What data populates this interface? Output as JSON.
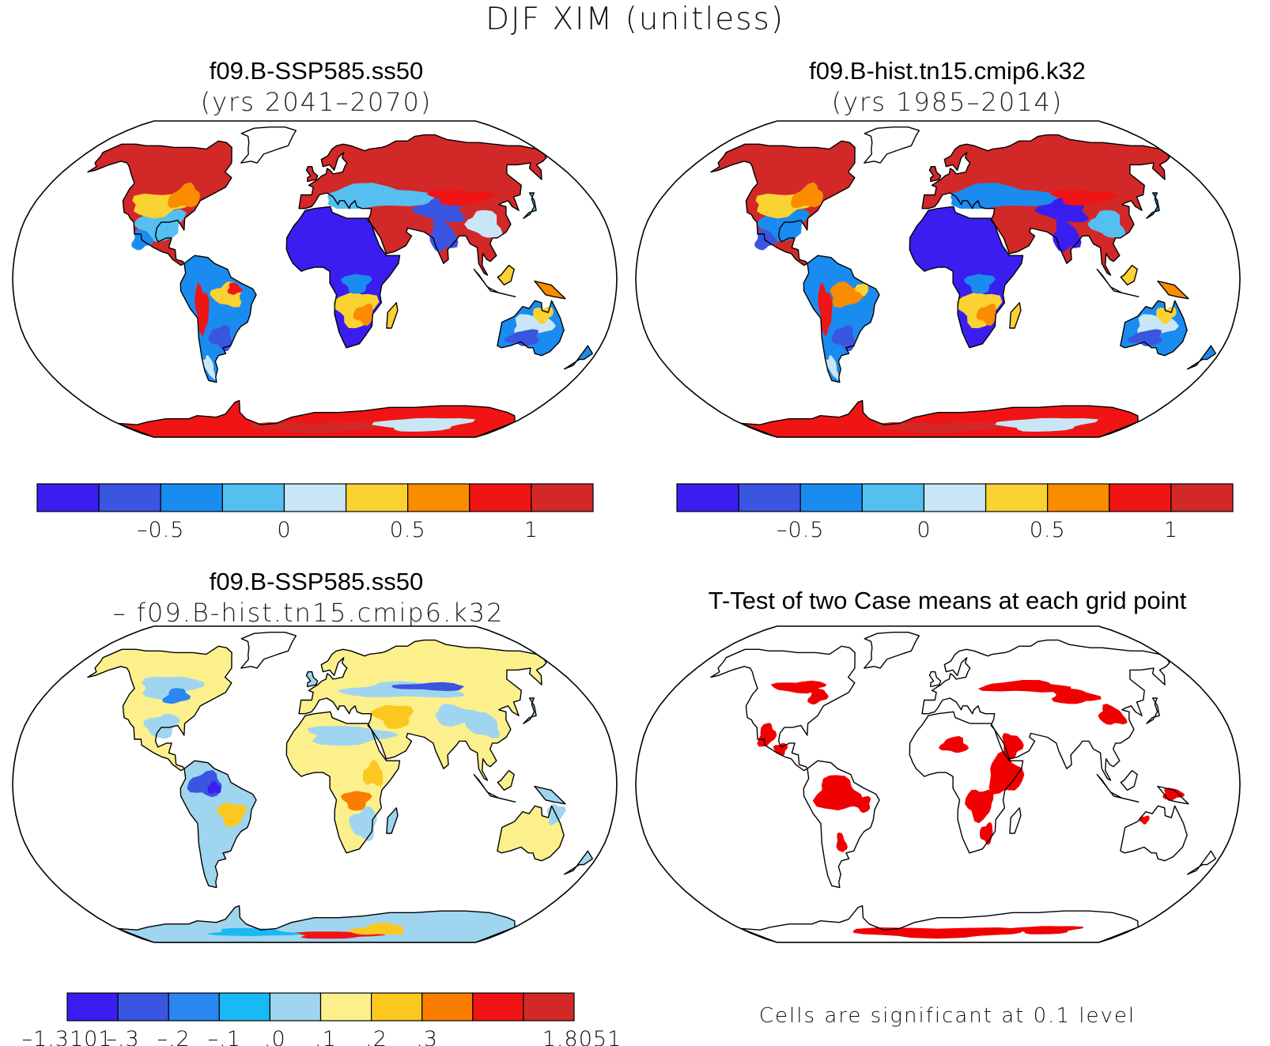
{
  "figure": {
    "title": "DJF XIM (unitless)"
  },
  "panels": [
    {
      "id": "case1",
      "title_line1": "f09.B-SSP585.ss50",
      "title_line2": "(yrs 2041–2070)"
    },
    {
      "id": "case2",
      "title_line1": "f09.B-hist.tn15.cmip6.k32",
      "title_line2": "(yrs 1985–2014)"
    },
    {
      "id": "diff",
      "title_line1": "f09.B-SSP585.ss50",
      "title_line2": "– f09.B-hist.tn15.cmip6.k32"
    },
    {
      "id": "ttest",
      "title_line1": "T-Test of two Case means at each grid point",
      "note": "Cells are significant at 0.1 level"
    }
  ],
  "chart_data": [
    {
      "type": "heatmap",
      "title": "f09.B-SSP585.ss50",
      "subtitle": "(yrs 2041–2070)",
      "projection": "Robinson",
      "colorbar": {
        "colors": [
          "#3a1ef0",
          "#3a55e0",
          "#1a8cf0",
          "#55bff0",
          "#c8e6f5",
          "#fad232",
          "#fa8c00",
          "#f01414",
          "#d22828"
        ],
        "bounds": [
          -1.0,
          -0.75,
          -0.5,
          -0.25,
          0,
          0.25,
          0.5,
          0.75,
          1.0,
          1.25
        ],
        "tick_values": [
          -0.5,
          0,
          0.5,
          1
        ],
        "tick_labels": [
          "–0.5",
          "0",
          "0.5",
          "1"
        ]
      }
    },
    {
      "type": "heatmap",
      "title": "f09.B-hist.tn15.cmip6.k32",
      "subtitle": "(yrs 1985–2014)",
      "projection": "Robinson",
      "colorbar": {
        "colors": [
          "#3a1ef0",
          "#3a55e0",
          "#1a8cf0",
          "#55bff0",
          "#c8e6f5",
          "#fad232",
          "#fa8c00",
          "#f01414",
          "#d22828"
        ],
        "bounds": [
          -1.0,
          -0.75,
          -0.5,
          -0.25,
          0,
          0.25,
          0.5,
          0.75,
          1.0,
          1.25
        ],
        "tick_values": [
          -0.5,
          0,
          0.5,
          1
        ],
        "tick_labels": [
          "–0.5",
          "0",
          "0.5",
          "1"
        ]
      }
    },
    {
      "type": "heatmap",
      "title": "f09.B-SSP585.ss50",
      "subtitle": "– f09.B-hist.tn15.cmip6.k32",
      "projection": "Robinson",
      "colorbar": {
        "colors": [
          "#3a1ef0",
          "#3a55e0",
          "#2a86f0",
          "#19b9f5",
          "#a0d5f0",
          "#fcf08c",
          "#fac81e",
          "#fa7d00",
          "#f01414",
          "#d22828"
        ],
        "tick_labels": [
          "–1.3101",
          "–.3",
          "–.2",
          "–.1",
          ".0",
          ".1",
          ".2",
          ".3",
          "1.8051"
        ]
      }
    },
    {
      "type": "heatmap",
      "title": "T-Test of two Case means at each grid point",
      "projection": "Robinson",
      "note": "Cells are significant at 0.1 level",
      "significant_color": "#f00000"
    }
  ]
}
